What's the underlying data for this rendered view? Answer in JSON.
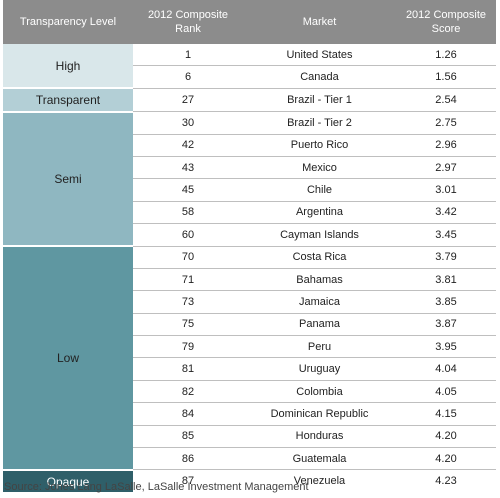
{
  "table": {
    "headers": {
      "level": "Transparency Level",
      "rank": "2012 Composite Rank",
      "market": "Market",
      "score": "2012 Composite Score"
    },
    "level_labels": {
      "high": "High",
      "transparent": "Transparent",
      "semi": "Semi",
      "low": "Low",
      "opaque": "Opaque"
    },
    "rows": [
      {
        "rank": "1",
        "market": "United States",
        "score": "1.26"
      },
      {
        "rank": "6",
        "market": "Canada",
        "score": "1.56"
      },
      {
        "rank": "27",
        "market": "Brazil - Tier 1",
        "score": "2.54"
      },
      {
        "rank": "30",
        "market": "Brazil - Tier 2",
        "score": "2.75"
      },
      {
        "rank": "42",
        "market": "Puerto Rico",
        "score": "2.96"
      },
      {
        "rank": "43",
        "market": "Mexico",
        "score": "2.97"
      },
      {
        "rank": "45",
        "market": "Chile",
        "score": "3.01"
      },
      {
        "rank": "58",
        "market": "Argentina",
        "score": "3.42"
      },
      {
        "rank": "60",
        "market": "Cayman Islands",
        "score": "3.45"
      },
      {
        "rank": "70",
        "market": "Costa Rica",
        "score": "3.79"
      },
      {
        "rank": "71",
        "market": "Bahamas",
        "score": "3.81"
      },
      {
        "rank": "73",
        "market": "Jamaica",
        "score": "3.85"
      },
      {
        "rank": "75",
        "market": "Panama",
        "score": "3.87"
      },
      {
        "rank": "79",
        "market": "Peru",
        "score": "3.95"
      },
      {
        "rank": "81",
        "market": "Uruguay",
        "score": "4.04"
      },
      {
        "rank": "82",
        "market": "Colombia",
        "score": "4.05"
      },
      {
        "rank": "84",
        "market": "Dominican Republic",
        "score": "4.15"
      },
      {
        "rank": "85",
        "market": "Honduras",
        "score": "4.20"
      },
      {
        "rank": "86",
        "market": "Guatemala",
        "score": "4.20"
      },
      {
        "rank": "87",
        "market": "Venezuela",
        "score": "4.23"
      }
    ],
    "colors": {
      "header": "#8c8c8c",
      "high": "#d9e7ea",
      "transparent": "#b3cfd6",
      "semi": "#8fb7c1",
      "low": "#5f97a1",
      "opaque": "#2f5f69"
    }
  },
  "source": "Source: Jones Lang LaSalle, LaSalle Investment Management"
}
